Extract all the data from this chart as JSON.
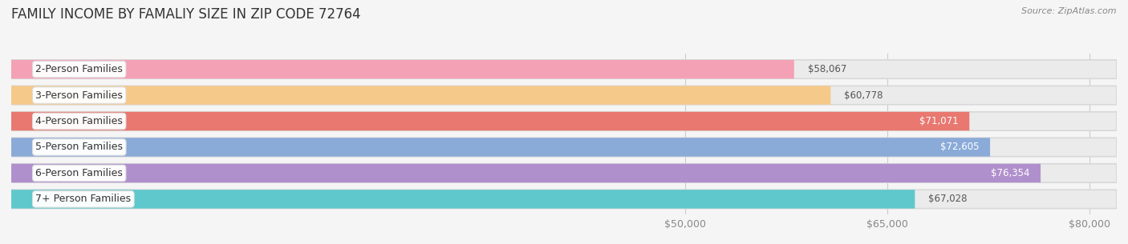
{
  "title": "FAMILY INCOME BY FAMALIY SIZE IN ZIP CODE 72764",
  "source": "Source: ZipAtlas.com",
  "categories": [
    "2-Person Families",
    "3-Person Families",
    "4-Person Families",
    "5-Person Families",
    "6-Person Families",
    "7+ Person Families"
  ],
  "values": [
    58067,
    60778,
    71071,
    72605,
    76354,
    67028
  ],
  "value_labels": [
    "$58,067",
    "$60,778",
    "$71,071",
    "$72,605",
    "$76,354",
    "$67,028"
  ],
  "bar_colors": [
    "#f4a0b5",
    "#f5c98a",
    "#e87870",
    "#8aaad8",
    "#b090cc",
    "#5ec8cc"
  ],
  "bar_bg_color": "#ebebeb",
  "background_color": "#f5f5f5",
  "xlim_data": [
    0,
    82000
  ],
  "xmin": 0,
  "xmax": 82000,
  "xticks": [
    50000,
    65000,
    80000
  ],
  "xtick_labels": [
    "$50,000",
    "$65,000",
    "$80,000"
  ],
  "title_fontsize": 12,
  "label_fontsize": 9,
  "value_fontsize": 8.5,
  "source_fontsize": 8,
  "value_threshold": 70000
}
